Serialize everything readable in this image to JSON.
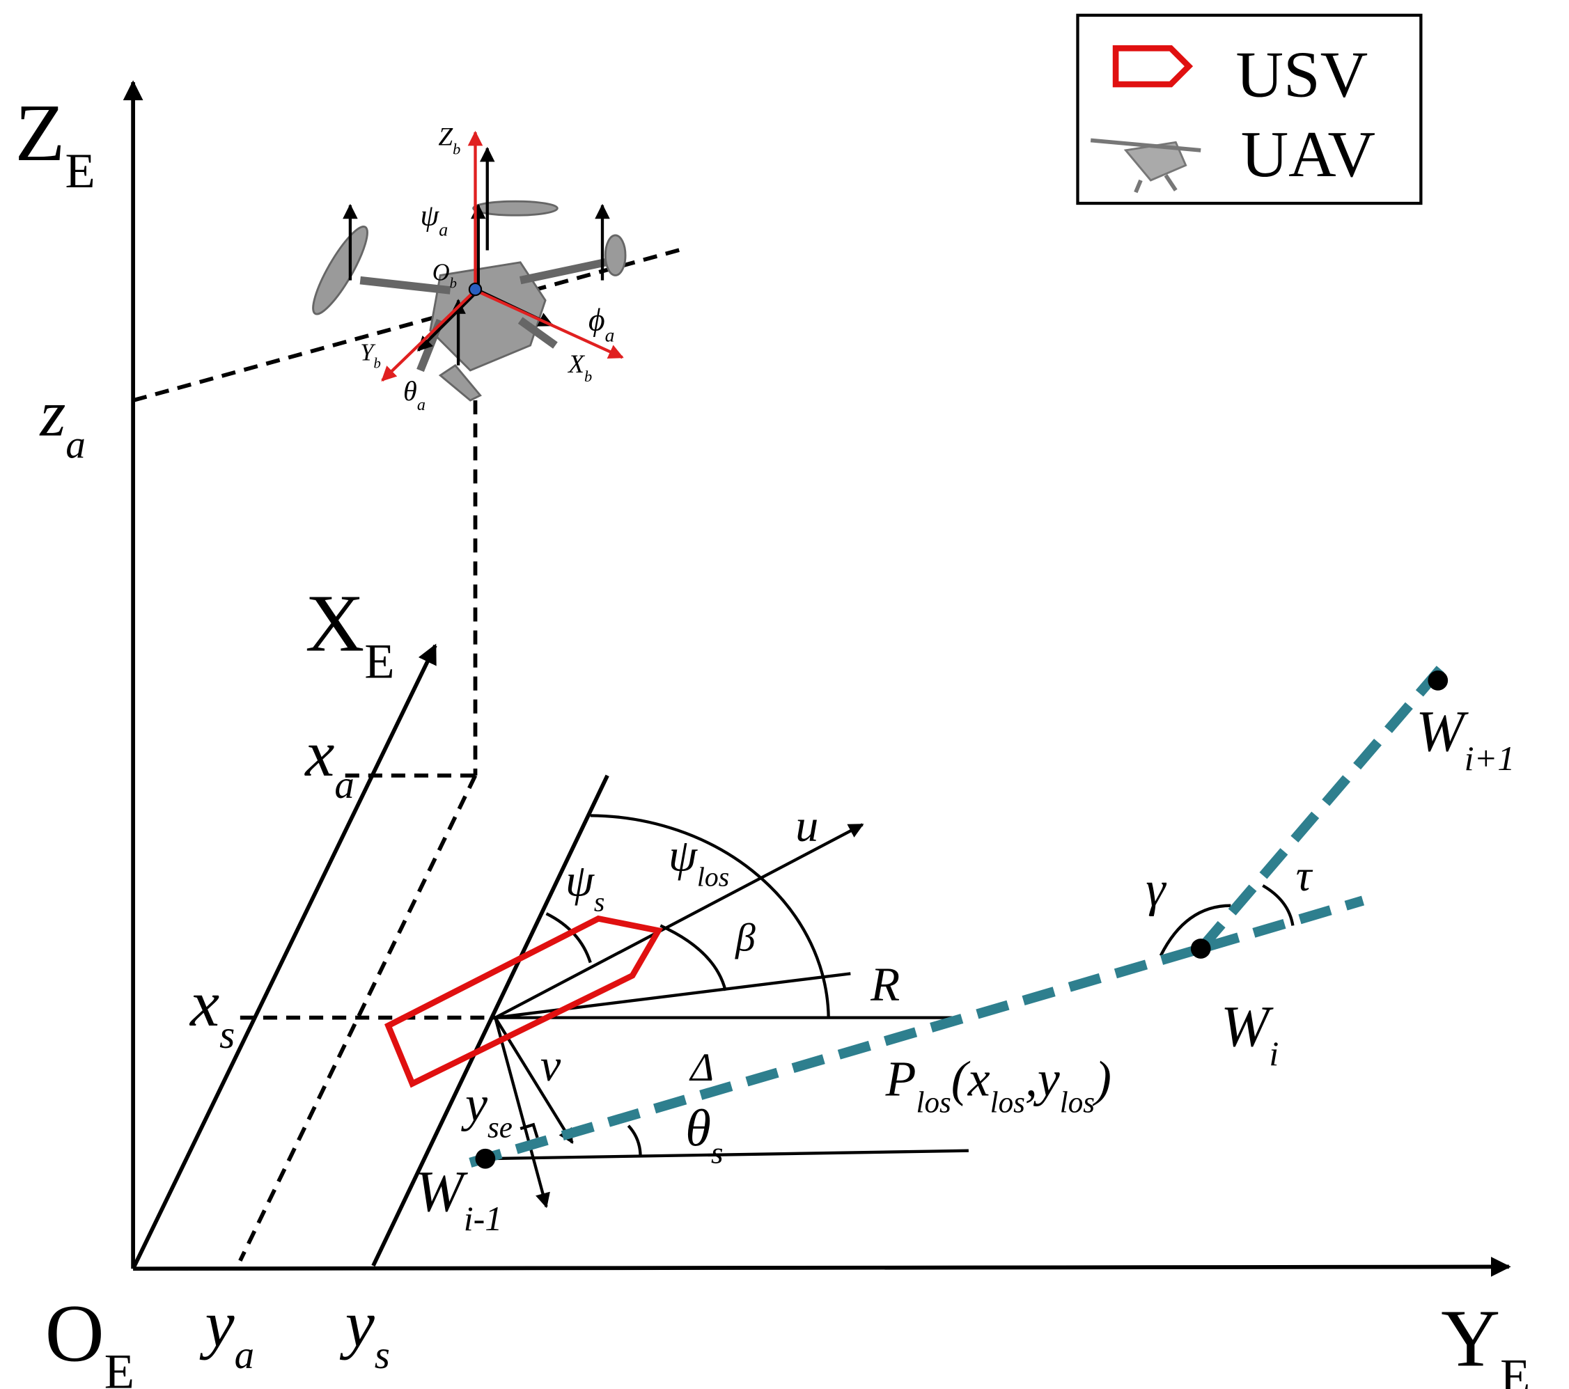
{
  "legend": [
    {
      "label": "USV"
    },
    {
      "label": "UAV"
    }
  ],
  "labels": [
    {
      "parts": [
        {
          "text": "Z"
        },
        {
          "text": "E",
          "sub": true
        }
      ]
    },
    {
      "parts": [
        {
          "text": "z"
        },
        {
          "text": "a",
          "sub": true
        }
      ]
    },
    {
      "parts": [
        {
          "text": "X"
        },
        {
          "text": "E",
          "sub": true
        }
      ]
    },
    {
      "parts": [
        {
          "text": "x"
        },
        {
          "text": "a",
          "sub": true
        }
      ]
    },
    {
      "parts": [
        {
          "text": "x"
        },
        {
          "text": "s",
          "sub": true
        }
      ]
    },
    {
      "parts": [
        {
          "text": "O"
        },
        {
          "text": "E",
          "sub": true
        }
      ]
    },
    {
      "parts": [
        {
          "text": "y"
        },
        {
          "text": "a",
          "sub": true
        }
      ]
    },
    {
      "parts": [
        {
          "text": "y"
        },
        {
          "text": "s",
          "sub": true
        }
      ]
    },
    {
      "parts": [
        {
          "text": "Y"
        },
        {
          "text": "E",
          "sub": true
        }
      ]
    },
    {
      "parts": [
        {
          "text": "W"
        },
        {
          "text": "i+1",
          "sub": true
        }
      ]
    },
    {
      "parts": [
        {
          "text": "W"
        },
        {
          "text": "i",
          "sub": true
        }
      ]
    },
    {
      "parts": [
        {
          "text": "W"
        },
        {
          "text": "i-1",
          "sub": true
        }
      ]
    },
    {
      "parts": [
        {
          "text": "P"
        },
        {
          "text": "los",
          "sub": true
        },
        {
          "text": "(x"
        },
        {
          "text": "los",
          "sub": true
        },
        {
          "text": ",y"
        },
        {
          "text": "los",
          "sub": true
        },
        {
          "text": ")"
        }
      ]
    },
    {
      "parts": [
        {
          "text": "u"
        }
      ]
    },
    {
      "parts": [
        {
          "text": "ψ"
        },
        {
          "text": "los",
          "sub": true
        }
      ]
    },
    {
      "parts": [
        {
          "text": "ψ"
        },
        {
          "text": "s",
          "sub": true
        }
      ]
    },
    {
      "parts": [
        {
          "text": "β"
        }
      ]
    },
    {
      "parts": [
        {
          "text": "R"
        }
      ]
    },
    {
      "parts": [
        {
          "text": "ν"
        }
      ]
    },
    {
      "parts": [
        {
          "text": "Δ"
        }
      ]
    },
    {
      "parts": [
        {
          "text": "y"
        },
        {
          "text": "se",
          "sub": true
        }
      ]
    },
    {
      "parts": [
        {
          "text": "θ"
        },
        {
          "text": "s",
          "sub": true
        }
      ]
    },
    {
      "parts": [
        {
          "text": "γ"
        }
      ]
    },
    {
      "parts": [
        {
          "text": "τ"
        }
      ]
    },
    {
      "parts": [
        {
          "text": "Z"
        },
        {
          "text": "b",
          "sub": true
        }
      ]
    },
    {
      "parts": [
        {
          "text": "ψ"
        },
        {
          "text": "a",
          "sub": true
        }
      ]
    },
    {
      "parts": [
        {
          "text": "O"
        },
        {
          "text": "b",
          "sub": true
        }
      ]
    },
    {
      "parts": [
        {
          "text": "ϕ"
        },
        {
          "text": "a",
          "sub": true
        }
      ]
    },
    {
      "parts": [
        {
          "text": "Y"
        },
        {
          "text": "b",
          "sub": true
        }
      ]
    },
    {
      "parts": [
        {
          "text": "X"
        },
        {
          "text": "b",
          "sub": true
        }
      ]
    },
    {
      "parts": [
        {
          "text": "θ"
        },
        {
          "text": "a",
          "sub": true
        }
      ]
    }
  ]
}
